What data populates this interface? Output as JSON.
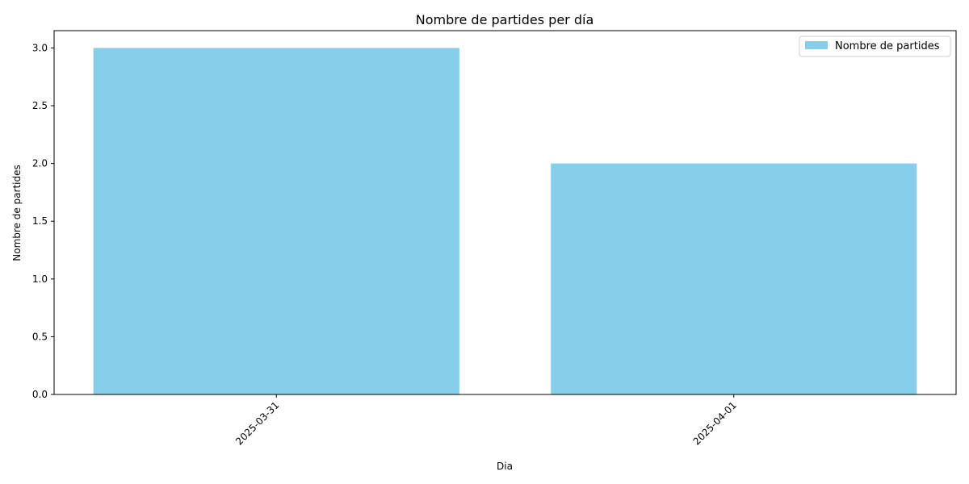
{
  "chart_data": {
    "type": "bar",
    "title": "Nombre de partides per día",
    "xlabel": "Dia",
    "ylabel": "Nombre de partides",
    "categories": [
      "2025-03-31",
      "2025-04-01"
    ],
    "series": [
      {
        "name": "Nombre de partides",
        "values": [
          3,
          2
        ],
        "color": "#87CEEB"
      }
    ],
    "ylim": [
      0,
      3.15
    ],
    "yticks": [
      0.0,
      0.5,
      1.0,
      1.5,
      2.0,
      2.5,
      3.0
    ],
    "yticklabels": [
      "0.0",
      "0.5",
      "1.0",
      "1.5",
      "2.0",
      "2.5",
      "3.0"
    ],
    "xtick_rotation_deg": 45,
    "grid": false,
    "legend": {
      "position": "top-right",
      "entries": [
        "Nombre de partides"
      ]
    }
  }
}
